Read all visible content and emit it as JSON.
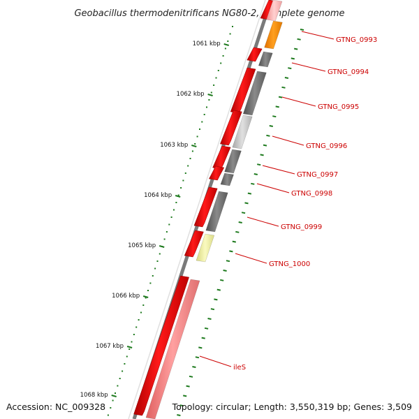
{
  "title": "Geobacillus thermodenitrificans NG80-2, complete genome",
  "footer": {
    "accession": "Accession: NC_009328",
    "topology": "Topology: circular; Length: 3,550,319 bp; Genes: 3,509"
  },
  "colors": {
    "backbone": "#808080",
    "tick": "#1e7a1e",
    "forward_gene": "#ff0000",
    "label": "#cc0000"
  },
  "kbp_labels": [
    "1061 kbp",
    "1062 kbp",
    "1063 kbp",
    "1064 kbp",
    "1065 kbp",
    "1066 kbp",
    "1067 kbp",
    "1068 kbp"
  ],
  "genes": [
    {
      "label": "GTNG_0993",
      "color": "#ff8c00"
    },
    {
      "label": "GTNG_0994",
      "color": "#6e6e6e"
    },
    {
      "label": "GTNG_0995",
      "color": "#6e6e6e"
    },
    {
      "label": "GTNG_0996",
      "color": "#c8c8c8"
    },
    {
      "label": "GTNG_0997",
      "color": "#6e6e6e"
    },
    {
      "label": "GTNG_0998",
      "color": "#6e6e6e"
    },
    {
      "label": "GTNG_0999",
      "color": "#6e6e6e"
    },
    {
      "label": "GTNG_1000",
      "color": "#eeee99"
    },
    {
      "label": "ileS",
      "color": "#f08080"
    }
  ]
}
